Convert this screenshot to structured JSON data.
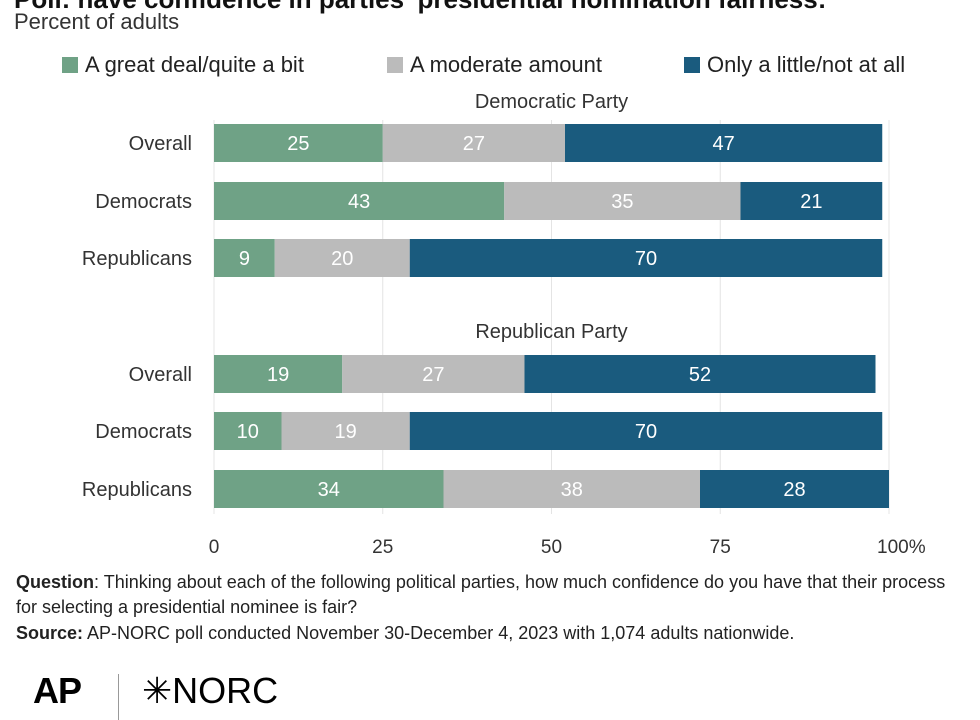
{
  "title": "Poll: have confidence in parties' presidential nomination fairness:",
  "subtitle": "Percent of adults",
  "legend": [
    {
      "label": "A great deal/quite a bit",
      "color": "#6fa286"
    },
    {
      "label": "A moderate amount",
      "color": "#bbbbbb"
    },
    {
      "label": "Only a little/not at all",
      "color": "#1a5b7e"
    }
  ],
  "chart_data": {
    "type": "bar",
    "orientation": "horizontal",
    "stacked": true,
    "xlim": [
      0,
      100
    ],
    "x_ticks": [
      "0",
      "25",
      "50",
      "75",
      "100%"
    ],
    "series_names": [
      "A great deal/quite a bit",
      "A moderate amount",
      "Only a little/not at all"
    ],
    "groups": [
      {
        "title": "Democratic Party",
        "rows": [
          {
            "label": "Overall",
            "values": [
              25,
              27,
              47
            ]
          },
          {
            "label": "Democrats",
            "values": [
              43,
              35,
              21
            ]
          },
          {
            "label": "Republicans",
            "values": [
              9,
              20,
              70
            ]
          }
        ]
      },
      {
        "title": "Republican Party",
        "rows": [
          {
            "label": "Overall",
            "values": [
              19,
              27,
              52
            ]
          },
          {
            "label": "Democrats",
            "values": [
              10,
              19,
              70
            ]
          },
          {
            "label": "Republicans",
            "values": [
              34,
              38,
              28
            ]
          }
        ]
      }
    ]
  },
  "notes": {
    "question_label": "Question",
    "question_text": ": Thinking about each of the following political parties, how much confidence do you have that their process for selecting a presidential nominee is fair?",
    "source_label": "Source:",
    "source_text": " AP-NORC poll conducted November 30-December 4, 2023 with 1,074 adults nationwide."
  },
  "logos": {
    "ap": "AP",
    "norc": "✳NORC"
  }
}
